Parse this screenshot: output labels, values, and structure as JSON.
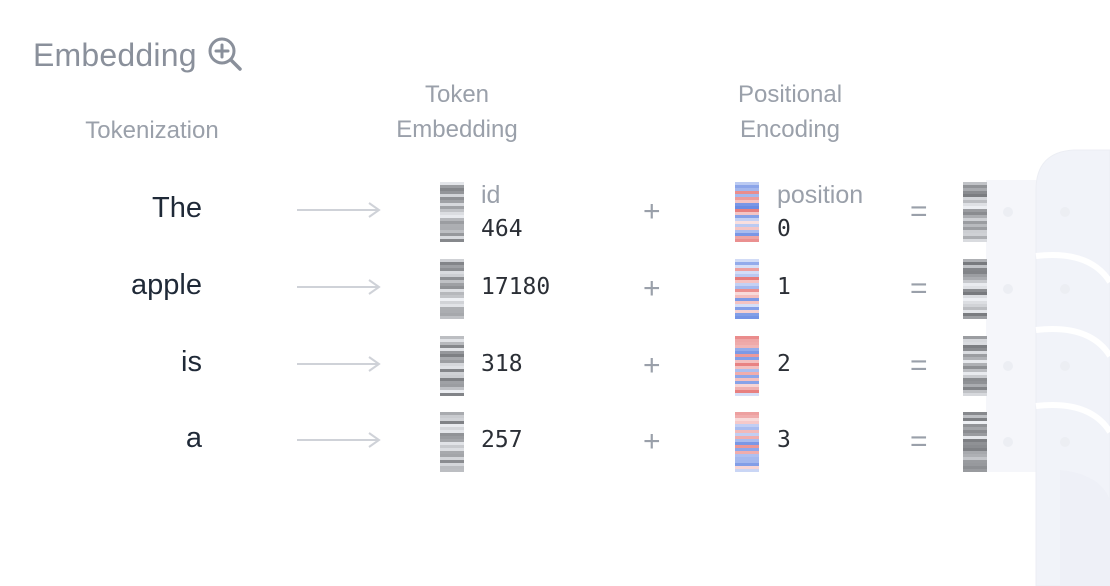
{
  "title": "Embedding",
  "headers": {
    "tokenization": "Tokenization",
    "token_embedding": [
      "Token",
      "Embedding"
    ],
    "positional_encoding": [
      "Positional",
      "Encoding"
    ]
  },
  "labels": {
    "id": "id",
    "position": "position"
  },
  "operators": {
    "plus": "+",
    "equals": "="
  },
  "icons": {
    "zoom": "zoom-in-icon",
    "arrow": "arrow-right-icon"
  },
  "colors": {
    "text": "#1f2937",
    "muted": "#9aa0aa",
    "title": "#8a909b",
    "pos_warm": "#e46d6d",
    "pos_cool": "#5b7fe0",
    "gray_dark": "#7b808a"
  },
  "rows": [
    {
      "token": "The",
      "id": "464",
      "position": "0"
    },
    {
      "token": "apple",
      "id": "17180",
      "position": "1"
    },
    {
      "token": "is",
      "id": "318",
      "position": "2"
    },
    {
      "token": "a",
      "id": "257",
      "position": "3"
    }
  ]
}
